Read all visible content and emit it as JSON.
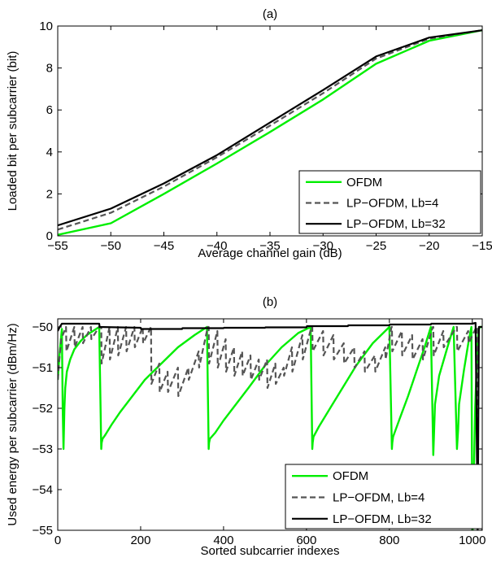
{
  "colors": {
    "ofdm": "#00ee00",
    "lp4": "#555555",
    "lp32": "#000000"
  },
  "chart_data": [
    {
      "type": "line",
      "title": "(a)",
      "xlabel": "Average channel gain (dB)",
      "ylabel": "Loaded bit per subcarrier (bit)",
      "xlim": [
        -55,
        -15
      ],
      "ylim": [
        0,
        10
      ],
      "xticks": [
        "−55",
        "−50",
        "−45",
        "−40",
        "−35",
        "−30",
        "−25",
        "−20",
        "−15"
      ],
      "yticks": [
        "0",
        "2",
        "4",
        "6",
        "8",
        "10"
      ],
      "legend_position": "bottom-right",
      "grid": false,
      "series": [
        {
          "name": "OFDM",
          "color": "#00ee00",
          "dash": "solid",
          "x": [
            -55,
            -50,
            -45,
            -40,
            -35,
            -30,
            -25,
            -20,
            -15
          ],
          "y": [
            0.05,
            0.6,
            2.0,
            3.45,
            4.95,
            6.5,
            8.2,
            9.3,
            9.8
          ]
        },
        {
          "name": "LP−OFDM, Lb=4",
          "color": "#555555",
          "dash": "dashed",
          "x": [
            -55,
            -50,
            -45,
            -40,
            -35,
            -30,
            -25,
            -20,
            -15
          ],
          "y": [
            0.3,
            1.1,
            2.35,
            3.75,
            5.25,
            6.8,
            8.45,
            9.4,
            9.8
          ]
        },
        {
          "name": "LP−OFDM, Lb=32",
          "color": "#000000",
          "dash": "solid",
          "x": [
            -55,
            -50,
            -45,
            -40,
            -35,
            -30,
            -25,
            -20,
            -15
          ],
          "y": [
            0.5,
            1.3,
            2.5,
            3.85,
            5.4,
            6.95,
            8.55,
            9.45,
            9.8
          ]
        }
      ]
    },
    {
      "type": "line",
      "title": "(b)",
      "xlabel": "Sorted subcarrier indexes",
      "ylabel": "Used energy per subcarrier (dBm/Hz)",
      "xlim": [
        0,
        1024
      ],
      "ylim": [
        -55,
        -49.8
      ],
      "xticks": [
        "0",
        "200",
        "400",
        "600",
        "800",
        "1000"
      ],
      "yticks": [
        "−50",
        "−51",
        "−52",
        "−53",
        "−54",
        "−55"
      ],
      "legend_position": "bottom-right",
      "grid": false,
      "series": [
        {
          "name": "OFDM",
          "color": "#00ee00",
          "dash": "solid",
          "x": [
            0,
            5,
            10,
            12,
            14,
            16,
            18,
            22,
            30,
            40,
            55,
            70,
            85,
            100,
            105,
            106,
            108,
            115,
            130,
            150,
            180,
            210,
            250,
            290,
            330,
            360,
            364,
            365,
            367,
            380,
            400,
            430,
            460,
            500,
            540,
            580,
            610,
            614,
            615,
            617,
            630,
            660,
            690,
            720,
            760,
            800,
            806,
            807,
            809,
            825,
            845,
            865,
            885,
            900,
            906,
            908,
            910,
            920,
            940,
            955,
            963,
            966,
            968,
            980,
            992,
            998,
            1000,
            1002,
            1007,
            1012,
            1015,
            1018,
            1024
          ],
          "y": [
            -51.3,
            -50.6,
            -50.05,
            -52.0,
            -53.0,
            -52.0,
            -51.5,
            -51.1,
            -50.8,
            -50.55,
            -50.35,
            -50.2,
            -50.1,
            -50.0,
            -53.0,
            -52.85,
            -52.75,
            -52.65,
            -52.4,
            -52.1,
            -51.7,
            -51.3,
            -50.9,
            -50.5,
            -50.2,
            -50.0,
            -53.0,
            -52.85,
            -52.75,
            -52.6,
            -52.3,
            -51.9,
            -51.5,
            -50.95,
            -50.5,
            -50.15,
            -50.0,
            -53.0,
            -52.85,
            -52.7,
            -52.45,
            -51.95,
            -51.45,
            -50.95,
            -50.4,
            -50.0,
            -53.0,
            -52.85,
            -52.7,
            -52.25,
            -51.7,
            -51.1,
            -50.5,
            -50.0,
            -53.15,
            -52.5,
            -51.9,
            -51.2,
            -50.5,
            -50.0,
            -53.0,
            -52.5,
            -51.9,
            -51.05,
            -50.3,
            -50.0,
            -55.5,
            -54.5,
            -52.0,
            -50.5,
            -50.1,
            -50.0,
            -50.0
          ]
        },
        {
          "name": "LP−OFDM, Lb=4",
          "color": "#555555",
          "dash": "dashed",
          "x": [
            0,
            8,
            20,
            21,
            40,
            41,
            60,
            61,
            80,
            81,
            100,
            105,
            106,
            125,
            126,
            145,
            146,
            165,
            166,
            185,
            186,
            205,
            206,
            225,
            226,
            245,
            246,
            265,
            266,
            290,
            291,
            315,
            316,
            340,
            341,
            362,
            364,
            365,
            385,
            386,
            405,
            406,
            425,
            426,
            445,
            446,
            465,
            466,
            485,
            486,
            505,
            506,
            525,
            526,
            545,
            546,
            565,
            566,
            590,
            591,
            612,
            614,
            615,
            640,
            641,
            665,
            666,
            690,
            691,
            715,
            716,
            740,
            741,
            765,
            766,
            790,
            791,
            805,
            806,
            807,
            830,
            831,
            855,
            856,
            880,
            881,
            905,
            906,
            907,
            930,
            931,
            962,
            963,
            964,
            990,
            991,
            1010,
            1012,
            1013,
            1024
          ],
          "y": [
            -51.3,
            -50.3,
            -50.0,
            -50.6,
            -50.0,
            -50.5,
            -50.0,
            -50.4,
            -50.0,
            -50.3,
            -50.0,
            -50.0,
            -50.9,
            -50.0,
            -50.8,
            -50.0,
            -50.7,
            -50.0,
            -50.6,
            -50.0,
            -50.5,
            -50.0,
            -50.4,
            -50.0,
            -51.4,
            -50.9,
            -51.6,
            -51.1,
            -51.6,
            -51.0,
            -51.7,
            -51.0,
            -51.3,
            -50.6,
            -51.0,
            -50.0,
            -50.0,
            -50.9,
            -50.1,
            -51.0,
            -50.3,
            -51.1,
            -50.5,
            -51.2,
            -50.6,
            -51.2,
            -50.7,
            -51.3,
            -50.8,
            -51.3,
            -50.8,
            -51.5,
            -50.9,
            -51.4,
            -51.0,
            -51.2,
            -50.5,
            -51.1,
            -50.2,
            -50.8,
            -50.0,
            -50.0,
            -50.6,
            -50.1,
            -50.7,
            -50.2,
            -50.8,
            -50.4,
            -50.9,
            -50.5,
            -51.0,
            -50.6,
            -51.1,
            -50.7,
            -51.1,
            -50.5,
            -50.8,
            -50.0,
            -50.0,
            -50.6,
            -50.1,
            -50.7,
            -50.2,
            -50.8,
            -50.3,
            -50.8,
            -50.0,
            -50.0,
            -50.7,
            -50.1,
            -50.5,
            -50.0,
            -50.0,
            -50.6,
            -50.1,
            -50.4,
            -50.0,
            -50.0,
            -55.0,
            -55.0
          ]
        },
        {
          "name": "LP−OFDM, Lb=32",
          "color": "#000000",
          "dash": "solid",
          "x": [
            0,
            5,
            10,
            100,
            101,
            200,
            201,
            300,
            301,
            400,
            401,
            500,
            501,
            600,
            601,
            700,
            701,
            800,
            801,
            900,
            901,
            1000,
            1008,
            1013,
            1016,
            1024
          ],
          "y": [
            -50.1,
            -50.0,
            -49.92,
            -49.92,
            -50.0,
            -50.02,
            -50.05,
            -50.05,
            -50.03,
            -50.03,
            -50.02,
            -50.02,
            -50.01,
            -50.01,
            -49.98,
            -49.98,
            -49.96,
            -49.96,
            -49.94,
            -49.94,
            -49.92,
            -49.92,
            -49.9,
            -55.0,
            -50.0,
            -50.0
          ]
        }
      ]
    }
  ]
}
